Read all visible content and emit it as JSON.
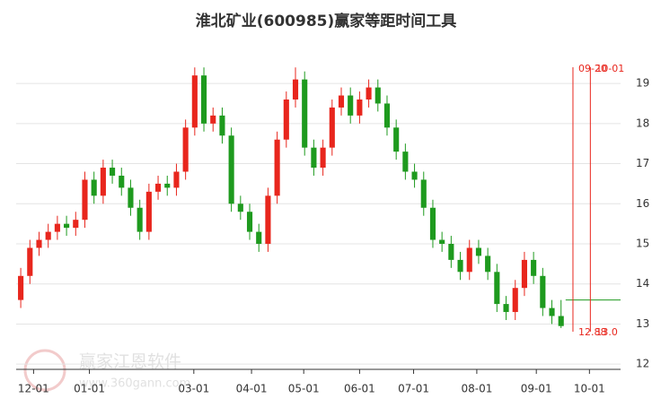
{
  "chart_data": {
    "type": "candlestick",
    "title": "淮北矿业(600985)赢家等距时间工具",
    "watermark": {
      "name": "赢家江恩软件",
      "url": "www.360gann.com"
    },
    "up_color": "#e8261d",
    "down_color": "#1e9a1e",
    "xlim": [
      0,
      66
    ],
    "xticks": [
      {
        "value": 1.9,
        "label": "12-01"
      },
      {
        "value": 8.0,
        "label": "01-01"
      },
      {
        "value": 19.4,
        "label": "03-01"
      },
      {
        "value": 25.7,
        "label": "04-01"
      },
      {
        "value": 31.4,
        "label": "05-01"
      },
      {
        "value": 37.5,
        "label": "06-01"
      },
      {
        "value": 43.4,
        "label": "07-01"
      },
      {
        "value": 50.3,
        "label": "08-01"
      },
      {
        "value": 56.8,
        "label": "09-01"
      },
      {
        "value": 62.6,
        "label": "10-01"
      }
    ],
    "ylim": [
      11.87,
      19.74
    ],
    "yticks": [
      12,
      13,
      14,
      15,
      16,
      17,
      18,
      19
    ],
    "grid": true,
    "open": [
      13.6,
      14.2,
      14.9,
      15.1,
      15.3,
      15.5,
      15.4,
      15.6,
      16.6,
      16.2,
      16.9,
      16.7,
      16.4,
      15.9,
      15.3,
      16.3,
      16.5,
      16.4,
      16.8,
      17.9,
      19.2,
      18.0,
      18.2,
      17.7,
      16.0,
      15.8,
      15.3,
      15.0,
      16.2,
      17.6,
      18.6,
      19.1,
      17.4,
      16.9,
      17.4,
      18.4,
      18.7,
      18.2,
      18.6,
      18.9,
      18.5,
      17.9,
      17.3,
      16.8,
      16.6,
      15.9,
      15.1,
      15.0,
      14.6,
      14.3,
      14.9,
      14.7,
      14.3,
      13.5,
      13.3,
      13.9,
      14.6,
      14.2,
      13.4,
      13.2
    ],
    "high": [
      14.4,
      15.1,
      15.3,
      15.5,
      15.7,
      15.7,
      15.8,
      16.8,
      16.8,
      17.1,
      17.1,
      16.9,
      16.6,
      16.1,
      16.5,
      16.7,
      16.7,
      17.0,
      18.1,
      19.4,
      19.4,
      18.4,
      18.4,
      17.9,
      16.2,
      16.0,
      15.5,
      16.4,
      17.8,
      18.8,
      19.4,
      19.3,
      17.6,
      17.6,
      18.6,
      18.9,
      18.9,
      18.8,
      19.1,
      19.1,
      18.7,
      18.1,
      17.5,
      17.0,
      16.8,
      16.1,
      15.3,
      15.2,
      14.8,
      15.1,
      15.1,
      14.9,
      14.5,
      13.7,
      14.1,
      14.8,
      14.8,
      14.4,
      13.6,
      13.6
    ],
    "low": [
      13.4,
      14.0,
      14.7,
      14.9,
      15.1,
      15.2,
      15.2,
      15.4,
      16.0,
      16.0,
      16.5,
      16.2,
      15.7,
      15.1,
      15.1,
      16.1,
      16.2,
      16.2,
      16.6,
      17.7,
      17.8,
      17.8,
      17.5,
      15.8,
      15.6,
      15.1,
      14.8,
      14.8,
      16.0,
      17.4,
      18.4,
      17.2,
      16.7,
      16.7,
      17.2,
      18.2,
      18.0,
      18.0,
      18.4,
      18.3,
      17.7,
      17.1,
      16.6,
      16.4,
      15.7,
      14.9,
      14.8,
      14.4,
      14.1,
      14.1,
      14.5,
      14.1,
      13.3,
      13.1,
      13.1,
      13.7,
      14.0,
      13.2,
      13.0,
      12.9
    ],
    "close": [
      14.2,
      14.9,
      15.1,
      15.3,
      15.5,
      15.4,
      15.6,
      16.6,
      16.2,
      16.9,
      16.7,
      16.4,
      15.9,
      15.3,
      16.3,
      16.5,
      16.4,
      16.8,
      17.9,
      19.2,
      18.0,
      18.2,
      17.7,
      16.0,
      15.8,
      15.3,
      15.0,
      16.2,
      17.6,
      18.6,
      19.1,
      17.4,
      16.9,
      17.4,
      18.4,
      18.7,
      18.2,
      18.6,
      18.9,
      18.5,
      17.9,
      17.3,
      16.8,
      16.6,
      15.9,
      15.1,
      15.0,
      14.6,
      14.3,
      14.9,
      14.7,
      14.3,
      13.5,
      13.3,
      13.9,
      14.6,
      14.2,
      13.4,
      13.2,
      12.95
    ],
    "markers": [
      {
        "x": 60.8,
        "top_label": "09-20",
        "bottom_label": "12.88"
      },
      {
        "x": 62.7,
        "top_label": "10-01",
        "bottom_label": "13.0"
      }
    ],
    "marker_color": "#e8261d",
    "hline": {
      "value": 13.6,
      "color": "#1e9a1e"
    }
  }
}
